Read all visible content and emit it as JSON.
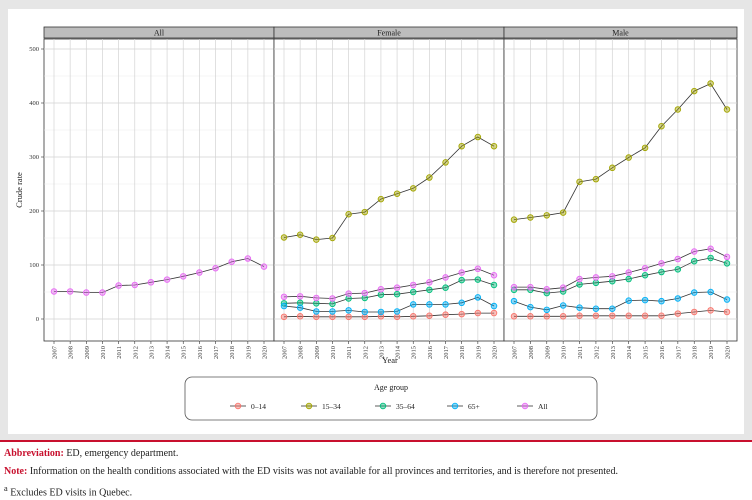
{
  "chart_data": {
    "type": "line",
    "panels": [
      "All",
      "Female",
      "Male"
    ],
    "x": [
      2007,
      2008,
      2009,
      2010,
      2011,
      2012,
      2013,
      2014,
      2015,
      2016,
      2017,
      2018,
      2019,
      2020
    ],
    "x_tick_labels": [
      "2007",
      "2008",
      "2009",
      "2010",
      "2011",
      "2012",
      "2013",
      "2014",
      "2015",
      "2016",
      "2017",
      "2018",
      "2019",
      "2020"
    ],
    "xlabel": "Year",
    "ylabel": "Crude rate",
    "ylim": [
      0,
      500
    ],
    "y_ticks": [
      0,
      100,
      200,
      300,
      400,
      500
    ],
    "y_tick_labels": [
      "0",
      "100",
      "200",
      "300",
      "400",
      "500"
    ],
    "grid": true,
    "legend": {
      "title": "Age group",
      "placement": "bottom",
      "entries": [
        "0–14",
        "15–34",
        "35–64",
        "65+",
        "All"
      ]
    },
    "series_colors": {
      "0–14": "#f8766d",
      "15–34": "#a3a500",
      "35–64": "#00bf7d",
      "65+": "#00b0f6",
      "All": "#e76bf3"
    },
    "series": {
      "All": [
        {
          "name": "All",
          "values": [
            51,
            51,
            49,
            49,
            62,
            63,
            68,
            73,
            79,
            86,
            94,
            106,
            112,
            97
          ]
        }
      ],
      "Female": [
        {
          "name": "0–14",
          "values": [
            4,
            5,
            4,
            4,
            4,
            4,
            5,
            4,
            5,
            6,
            8,
            9,
            11,
            11
          ]
        },
        {
          "name": "15–34",
          "values": [
            151,
            156,
            147,
            150,
            194,
            198,
            222,
            232,
            242,
            262,
            290,
            320,
            337,
            320
          ]
        },
        {
          "name": "35–64",
          "values": [
            29,
            30,
            29,
            28,
            38,
            39,
            45,
            46,
            50,
            54,
            58,
            72,
            73,
            63
          ]
        },
        {
          "name": "65+",
          "values": [
            24,
            21,
            14,
            14,
            16,
            13,
            13,
            14,
            27,
            27,
            27,
            30,
            40,
            24
          ]
        },
        {
          "name": "All",
          "values": [
            41,
            42,
            39,
            38,
            47,
            48,
            55,
            58,
            63,
            68,
            77,
            86,
            93,
            81
          ]
        }
      ],
      "Male": [
        {
          "name": "0–14",
          "values": [
            5,
            5,
            5,
            5,
            6,
            6,
            6,
            6,
            6,
            6,
            10,
            13,
            16,
            13
          ]
        },
        {
          "name": "15–34",
          "values": [
            184,
            188,
            192,
            197,
            254,
            259,
            280,
            299,
            317,
            357,
            388,
            422,
            436,
            388
          ]
        },
        {
          "name": "35–64",
          "values": [
            54,
            54,
            48,
            51,
            64,
            67,
            70,
            74,
            81,
            87,
            92,
            107,
            113,
            103
          ]
        },
        {
          "name": "65+",
          "values": [
            33,
            22,
            17,
            25,
            21,
            19,
            19,
            34,
            35,
            33,
            38,
            49,
            50,
            36
          ]
        },
        {
          "name": "All",
          "values": [
            59,
            59,
            55,
            58,
            74,
            77,
            79,
            86,
            94,
            103,
            111,
            125,
            130,
            115
          ]
        }
      ]
    }
  },
  "footnotes": {
    "abbreviation_label": "Abbreviation:",
    "abbreviation_text": "ED, emergency department.",
    "note_label": "Note:",
    "note_text": "Information on the health conditions associated with the ED visits was not available for all provinces and territories, and is therefore not presented.",
    "superscript": "a",
    "excludes_text": "Excludes ED visits in Quebec."
  }
}
